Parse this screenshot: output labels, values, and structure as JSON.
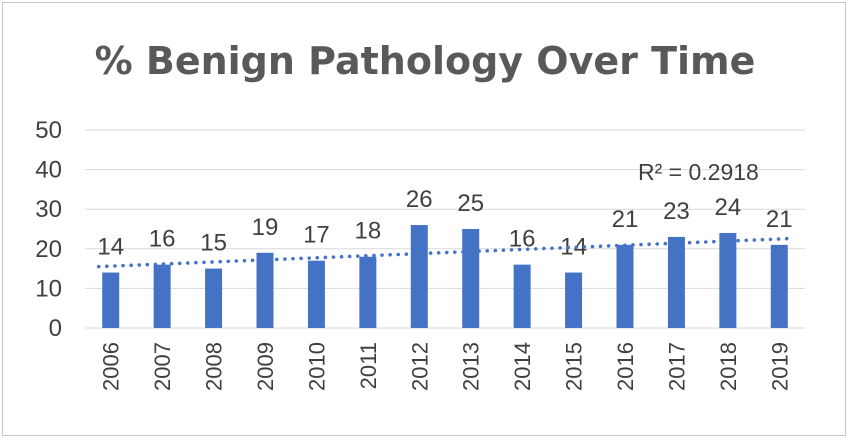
{
  "chart_data": {
    "type": "bar",
    "title": "% Benign Pathology Over Time",
    "categories": [
      "2006",
      "2007",
      "2008",
      "2009",
      "2010",
      "2011",
      "2012",
      "2013",
      "2014",
      "2015",
      "2016",
      "2017",
      "2018",
      "2019"
    ],
    "values": [
      14,
      16,
      15,
      19,
      17,
      18,
      26,
      25,
      16,
      14,
      21,
      23,
      24,
      21
    ],
    "data_labels": [
      "14",
      "16",
      "15",
      "19",
      "17",
      "18",
      "26",
      "25",
      "16",
      "14",
      "21",
      "23",
      "24",
      "21"
    ],
    "ylim": [
      0,
      50
    ],
    "yticks": [
      0,
      10,
      20,
      30,
      40,
      50
    ],
    "ytick_labels": [
      "0",
      "10",
      "20",
      "30",
      "40",
      "50"
    ],
    "grid": true,
    "legend": "none",
    "bar_color": "#4472c4",
    "trendline": {
      "type": "linear",
      "style": "dotted",
      "color": "#4472c4",
      "start_value": 15.5,
      "end_value": 22.6,
      "label": "R² = 0.2918"
    }
  }
}
